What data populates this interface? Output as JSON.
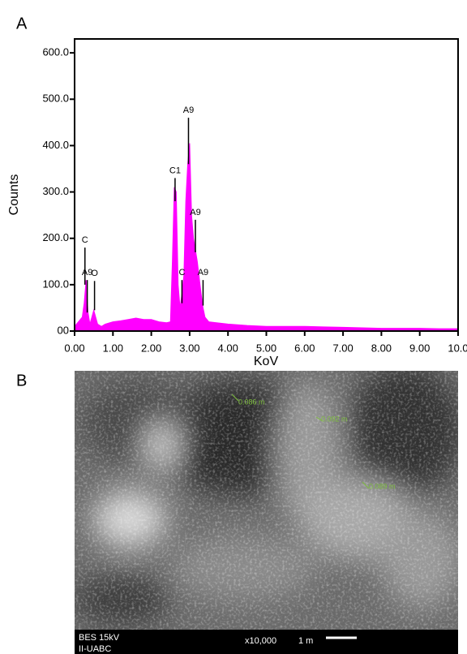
{
  "panel_labels": [
    "A",
    "B"
  ],
  "chart_data": {
    "type": "area",
    "x_label": "KoV",
    "y_label": "Counts",
    "color": "#ff00ff",
    "x": [
      0.0,
      0.1,
      0.2,
      0.25,
      0.3,
      0.35,
      0.4,
      0.5,
      0.55,
      0.6,
      0.7,
      0.8,
      1.0,
      1.2,
      1.4,
      1.6,
      1.8,
      2.0,
      2.2,
      2.4,
      2.5,
      2.55,
      2.6,
      2.65,
      2.7,
      2.75,
      2.8,
      2.85,
      2.9,
      2.95,
      3.0,
      3.05,
      3.1,
      3.15,
      3.2,
      3.3,
      3.35,
      3.4,
      3.5,
      3.7,
      4.0,
      4.5,
      5.0,
      5.5,
      6.0,
      6.5,
      7.0,
      7.5,
      8.0,
      8.5,
      9.0,
      9.5,
      10.0
    ],
    "values": [
      10,
      20,
      30,
      60,
      110,
      40,
      15,
      45,
      30,
      15,
      10,
      15,
      20,
      22,
      25,
      28,
      25,
      25,
      20,
      18,
      20,
      150,
      310,
      300,
      100,
      50,
      80,
      120,
      280,
      360,
      405,
      250,
      200,
      175,
      150,
      80,
      50,
      30,
      20,
      18,
      15,
      12,
      10,
      10,
      10,
      9,
      8,
      7,
      6,
      6,
      6,
      5,
      5
    ],
    "xlim": [
      0,
      10
    ],
    "ylim": [
      0,
      630
    ],
    "xticks": [
      {
        "value": 0,
        "label": "0.00"
      },
      {
        "value": 1,
        "label": "1.00"
      },
      {
        "value": 2,
        "label": "2.00"
      },
      {
        "value": 3,
        "label": "3.00"
      },
      {
        "value": 4,
        "label": "4.00"
      },
      {
        "value": 5,
        "label": "5.00"
      },
      {
        "value": 6,
        "label": "6.00"
      },
      {
        "value": 7,
        "label": "7.00"
      },
      {
        "value": 8,
        "label": "8.00"
      },
      {
        "value": 9,
        "label": "9.00"
      },
      {
        "value": 10,
        "label": "10.0"
      }
    ],
    "yticks": [
      {
        "value": 0,
        "label": "00"
      },
      {
        "value": 100,
        "label": "100.0"
      },
      {
        "value": 200,
        "label": "200.0"
      },
      {
        "value": 300,
        "label": "300.0"
      },
      {
        "value": 400,
        "label": "400.0"
      },
      {
        "value": 500,
        "label": "500.0"
      },
      {
        "value": 600,
        "label": "600.0"
      }
    ],
    "annotations": [
      {
        "text": "C",
        "x": 0.27,
        "y": 180,
        "y_end": 100
      },
      {
        "text": "A9",
        "x": 0.33,
        "y": 110,
        "y_end": 40
      },
      {
        "text": "O",
        "x": 0.52,
        "y": 108,
        "y_end": 45
      },
      {
        "text": "C1",
        "x": 2.62,
        "y": 330,
        "y_end": 280
      },
      {
        "text": "C",
        "x": 2.8,
        "y": 110,
        "y_end": 60
      },
      {
        "text": "A9",
        "x": 2.97,
        "y": 460,
        "y_end": 360
      },
      {
        "text": "A9",
        "x": 3.15,
        "y": 240,
        "y_end": 170
      },
      {
        "text": "A9",
        "x": 3.35,
        "y": 110,
        "y_end": 55
      }
    ]
  },
  "micrograph": {
    "measurements": [
      "0.086  m",
      "0.092  m",
      "0.089  m"
    ],
    "info": [
      "BES 15kV",
      "II-UABC"
    ],
    "magnification": "x10,000",
    "scale": "1  m"
  }
}
